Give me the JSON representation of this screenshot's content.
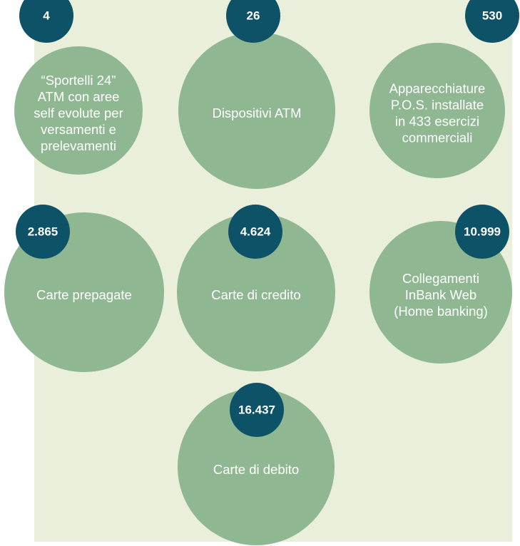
{
  "items": [
    {
      "number": "4",
      "label": [
        "“Sportelli 24”",
        "ATM con aree",
        "self evolute per",
        "versamenti e",
        "prelevamenti"
      ]
    },
    {
      "number": "26",
      "label": [
        "Dispositivi ATM"
      ]
    },
    {
      "number": "530",
      "label": [
        "Apparecchiature",
        "P.O.S. installate",
        "in 433 esercizi",
        "commerciali"
      ]
    },
    {
      "number": "2.865",
      "label": [
        "Carte prepagate"
      ]
    },
    {
      "number": "4.624",
      "label": [
        "Carte di credito"
      ]
    },
    {
      "number": "10.999",
      "label": [
        "Collegamenti",
        "InBank Web",
        "(Home banking)"
      ]
    },
    {
      "number": "16.437",
      "label": [
        "Carte di debito"
      ]
    }
  ]
}
